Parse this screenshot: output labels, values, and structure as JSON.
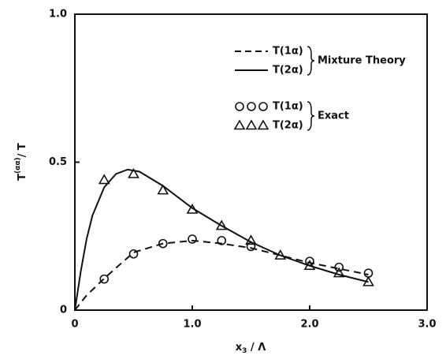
{
  "chart_data": {
    "type": "line",
    "x_label": {
      "base": "x",
      "sub": "3",
      "rest": " / Λ"
    },
    "y_label": {
      "base": "T",
      "sup": "(αα)",
      "rest": "/ T"
    },
    "xlim": [
      0,
      3.0
    ],
    "xticks": [
      0,
      {
        "value": 1.0,
        "label": "1.0"
      },
      {
        "value": 2.0,
        "label": "2.0"
      },
      {
        "value": 3.0,
        "label": "3.0"
      }
    ],
    "ylim": [
      0,
      1.0
    ],
    "yticks": [
      0,
      0.5,
      {
        "value": 1.0,
        "label": "1.0"
      }
    ],
    "series": [
      {
        "name": "T(1α)",
        "group": "Mixture Theory",
        "style": "dashed",
        "color": "#111",
        "x": [
          0,
          0.1,
          0.25,
          0.5,
          0.75,
          1.0,
          1.25,
          1.5,
          1.75,
          2.0,
          2.25,
          2.5
        ],
        "values": [
          0,
          0.05,
          0.107,
          0.195,
          0.225,
          0.235,
          0.225,
          0.21,
          0.185,
          0.16,
          0.14,
          0.12
        ]
      },
      {
        "name": "T(2α)",
        "group": "Mixture Theory",
        "style": "solid",
        "color": "#111",
        "x": [
          0,
          0.05,
          0.1,
          0.15,
          0.25,
          0.35,
          0.45,
          0.55,
          0.75,
          1.0,
          1.25,
          1.5,
          1.75,
          2.0,
          2.25,
          2.5
        ],
        "values": [
          0,
          0.13,
          0.24,
          0.32,
          0.415,
          0.46,
          0.475,
          0.468,
          0.42,
          0.345,
          0.285,
          0.23,
          0.185,
          0.15,
          0.12,
          0.095
        ]
      },
      {
        "name": "T(1α)",
        "group": "Exact",
        "style": "circle",
        "color": "#111",
        "x": [
          0.25,
          0.5,
          0.75,
          1.0,
          1.25,
          1.5,
          2.0,
          2.25,
          2.5
        ],
        "values": [
          0.105,
          0.19,
          0.225,
          0.24,
          0.235,
          0.215,
          0.165,
          0.145,
          0.125
        ]
      },
      {
        "name": "T(2α)",
        "group": "Exact",
        "style": "triangle",
        "color": "#111",
        "x": [
          0.25,
          0.5,
          0.75,
          1.0,
          1.25,
          1.5,
          1.75,
          2.0,
          2.25,
          2.5
        ],
        "values": [
          0.44,
          0.46,
          0.405,
          0.34,
          0.285,
          0.235,
          0.185,
          0.15,
          0.125,
          0.095
        ]
      }
    ]
  }
}
